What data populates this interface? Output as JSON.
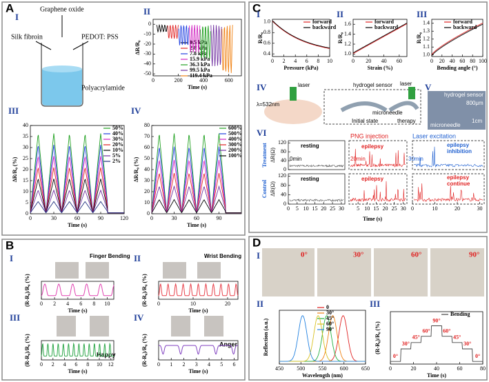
{
  "texts": {
    "a_letter": "A",
    "b_letter": "B",
    "c_letter": "C",
    "d_letter": "D",
    "a_i": "I",
    "a_ii": "II",
    "a_iii": "III",
    "a_iv": "IV",
    "a_graphene": "Graphene oxide",
    "a_silk": "Silk fibroin",
    "a_pedot": "PEDOT: PSS",
    "a_paa": "Polyacrylamide",
    "b_i": "I",
    "b_ii": "II",
    "b_iii": "III",
    "b_iv": "IV",
    "b_finger": "Finger Bending",
    "b_wrist": "Wrist Bending",
    "b_happy": "Happy",
    "b_anger": "Anger",
    "c_i": "I",
    "c_ii": "II",
    "c_iii": "III",
    "c_iv": "IV",
    "c_v": "V",
    "c_vi": "VI",
    "c_lambda": "λ=532nm",
    "c_laser1": "laser",
    "c_hydrogel": "hydrogel sensor",
    "c_laser2": "laser",
    "c_microneedle": "microneedle",
    "c_initial": "Initial state",
    "c_therapy": "therapy",
    "c_v_hydrogel": "hydrogel sensor",
    "c_v_scale1": "800μm",
    "c_v_microneedle": "microneedle",
    "c_v_scale2": "1cm",
    "c_png": "PNG injection",
    "c_laser_exc": "Laser excitation",
    "c_resting1": "resting",
    "c_0min": "0min",
    "c_20min": "20min",
    "c_epilepsy1": "epilepsy",
    "c_30min": "30min",
    "c_epilepsy2": "epilepsy",
    "c_inhibition": "inhibition",
    "c_resting2": "resting",
    "c_epilepsy3": "epilepsy",
    "c_epilepsy4": "epilepsy",
    "c_continue": "continue",
    "d_i": "I",
    "d_ii": "II",
    "d_iii": "III",
    "d_0": "0°",
    "d_30": "30°",
    "d_60": "60°",
    "d_90": "90°"
  },
  "charts": [
    {
      "xlabel": "Time (s)",
      "ylabel": "ΔR/R₀",
      "xlim": [
        0,
        700
      ],
      "ylim": [
        -52,
        5
      ],
      "xticks": [
        0,
        200,
        400,
        600
      ],
      "yticks": [
        0,
        -10,
        -20,
        -30,
        -40,
        -50
      ],
      "series": [
        {
          "name": "0.5 kPa",
          "color": "#000000"
        },
        {
          "name": "2.8 kPa",
          "color": "#e02020"
        },
        {
          "name": "7.8 kPa",
          "color": "#2040e0"
        },
        {
          "name": "15.9 kPa",
          "color": "#d020c0"
        },
        {
          "name": "36.3 kPa",
          "color": "#20a020"
        },
        {
          "name": "99.5 kPa",
          "color": "#7030a0"
        },
        {
          "name": "119.4 kPa",
          "color": "#f08010"
        }
      ]
    },
    {
      "xlabel": "Time (s)",
      "ylabel": "ΔR/R₀ (%)",
      "xlim": [
        0,
        120
      ],
      "ylim": [
        0,
        40
      ],
      "xticks": [
        0,
        30,
        60,
        90,
        120
      ],
      "yticks": [
        0,
        5,
        10,
        15,
        20,
        25,
        30,
        35,
        40
      ],
      "series": [
        {
          "name": "50%",
          "color": "#20a020"
        },
        {
          "name": "40%",
          "color": "#2040e0"
        },
        {
          "name": "30%",
          "color": "#d020c0"
        },
        {
          "name": "20%",
          "color": "#e02020"
        },
        {
          "name": "10%",
          "color": "#000000"
        },
        {
          "name": "5%",
          "color": "#7030a0"
        },
        {
          "name": "2%",
          "color": "#203080"
        }
      ]
    },
    {
      "xlabel": "Time (s)",
      "ylabel": "ΔR/R₀ (%)",
      "xlim": [
        0,
        120
      ],
      "ylim": [
        0,
        80
      ],
      "xticks": [
        0,
        30,
        60,
        90
      ],
      "yticks": [
        0,
        10,
        20,
        30,
        40,
        50,
        60,
        70,
        80
      ],
      "series": [
        {
          "name": "600%",
          "color": "#20a020"
        },
        {
          "name": "500%",
          "color": "#2040e0"
        },
        {
          "name": "400%",
          "color": "#d020c0"
        },
        {
          "name": "300%",
          "color": "#e02020"
        },
        {
          "name": "200%",
          "color": "#7030a0"
        },
        {
          "name": "100%",
          "color": "#000000"
        }
      ]
    },
    {
      "xlabel": "Time (s)",
      "ylabel": "(R-R₀)/R₀ (%)",
      "xlim": [
        0,
        11
      ],
      "xticks": [
        0,
        2,
        4,
        6,
        8,
        10
      ],
      "color": "#e040b0"
    },
    {
      "xlabel": "Time (s)",
      "ylabel": "(R-R₀)/R₀ (%)",
      "xlim": [
        0,
        23
      ],
      "xticks": [
        0,
        10,
        20
      ],
      "color": "#e8404a"
    },
    {
      "xlabel": "Time (s)",
      "ylabel": "(R-R₀)/R₀ (%)",
      "xlim": [
        0,
        12.5
      ],
      "xticks": [
        0,
        2,
        4,
        6,
        8,
        10,
        12
      ],
      "color": "#2ea84a"
    },
    {
      "xlabel": "Time (s)",
      "ylabel": "(R-R₀)/R₀ (%)",
      "xlim": [
        0,
        6.3
      ],
      "xticks": [
        0,
        1,
        2,
        3,
        4,
        5,
        6
      ],
      "color": "#8040c0"
    },
    {
      "xlabel": "Pressure (kPa)",
      "ylabel": "R/R₀",
      "xlim": [
        0,
        10
      ],
      "ylim": [
        0.35,
        1.05
      ],
      "xticks": [
        0,
        2,
        4,
        6,
        8,
        10
      ],
      "yticks": [
        {
          "value": 1,
          "label": "1.0"
        },
        0.8,
        0.6,
        0.4
      ],
      "series": [
        {
          "name": "forward",
          "color": "#e02020"
        },
        {
          "name": "backward",
          "color": "#000000"
        }
      ]
    },
    {
      "xlabel": "Strain (%)",
      "ylabel": "R/R₀",
      "xlim": [
        0,
        70
      ],
      "ylim": [
        0.95,
        1.7
      ],
      "xticks": [
        0,
        20,
        40,
        60
      ],
      "yticks": [
        {
          "value": 1,
          "label": "1.0"
        },
        1.2,
        1.4,
        1.6
      ],
      "series": [
        {
          "name": "forward",
          "color": "#e02020"
        },
        {
          "name": "backward",
          "color": "#000000"
        }
      ]
    },
    {
      "xlabel": "Bending angle (°)",
      "ylabel": "R/R₀",
      "xlim": [
        0,
        100
      ],
      "ylim": [
        0.98,
        1.45
      ],
      "xticks": [
        0,
        20,
        40,
        60,
        80,
        100
      ],
      "yticks": [
        {
          "value": 1,
          "label": "1.0"
        },
        1.1,
        1.2,
        1.3,
        1.4
      ],
      "series": [
        {
          "name": "forward",
          "color": "#e02020"
        },
        {
          "name": "backward",
          "color": "#000000"
        }
      ]
    },
    {
      "xlabel": "Wavelength (nm)",
      "ylabel": "Reflection (a.u.)",
      "xlim": [
        450,
        650
      ],
      "xticks": [
        450,
        500,
        550,
        600,
        650
      ],
      "series": [
        {
          "name": "0",
          "color": "#e02020"
        },
        {
          "name": "30°",
          "color": "#f08010"
        },
        {
          "name": "45°",
          "color": "#20b040"
        },
        {
          "name": "60°",
          "color": "#d8c020"
        },
        {
          "name": "90°",
          "color": "#2080e0"
        }
      ]
    },
    {
      "xlabel": "Time (s)",
      "ylabel": "(R-R₀)/R₀ (%)",
      "xlim": [
        0,
        80
      ],
      "xticks": [
        0,
        20,
        40,
        60,
        80
      ],
      "series": [
        {
          "name": "Bending",
          "color": "#444444"
        }
      ],
      "annotations": [
        "0°",
        "30°",
        "45°",
        "60°",
        "90°",
        "60°",
        "45°",
        "30°",
        "0°"
      ]
    }
  ],
  "vi": {
    "ylabel": "ΔR(Ω)",
    "xlabel": "Time (s)",
    "ylim": [
      0,
      130
    ],
    "yticks": [
      0,
      40,
      80,
      120
    ],
    "rows": [
      "Treatment",
      "Control"
    ],
    "segments": [
      {
        "xlim": [
          0,
          32
        ],
        "xticks": [
          0,
          5,
          10,
          15,
          20,
          25,
          30
        ]
      },
      {
        "xlim": [
          0,
          32
        ],
        "xticks": [
          5,
          10,
          15,
          20,
          25,
          30
        ]
      },
      {
        "xlim": [
          0,
          32
        ],
        "xticks": [
          0,
          10,
          20,
          30
        ]
      }
    ]
  }
}
